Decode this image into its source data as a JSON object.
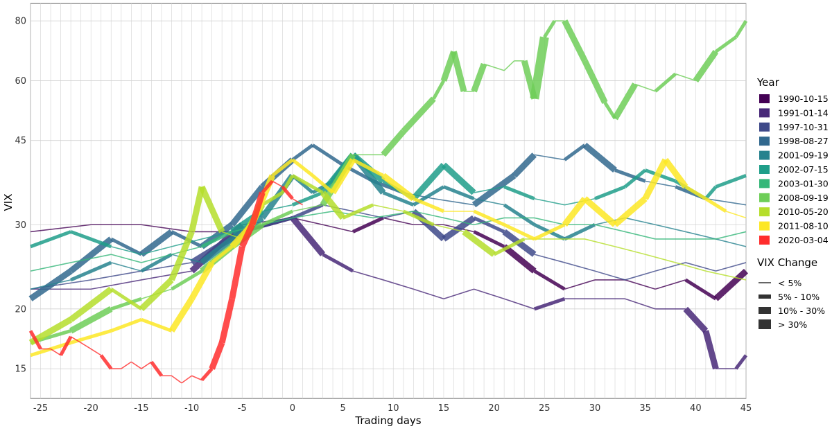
{
  "chart_data": {
    "type": "line",
    "xlabel": "Trading days",
    "ylabel": "VIX",
    "xlim": [
      -26,
      45
    ],
    "ylim": [
      13,
      87
    ],
    "y_scale": "log",
    "x_ticks": [
      -25,
      -20,
      -15,
      -10,
      -5,
      0,
      5,
      10,
      15,
      20,
      25,
      30,
      35,
      40,
      45
    ],
    "x_tick_labels": [
      "-25",
      "-20",
      "-15",
      "-10",
      "-5",
      "0",
      "5",
      "10",
      "15",
      "20",
      "25",
      "30",
      "35",
      "40",
      "45"
    ],
    "y_ticks": [
      15,
      20,
      30,
      45,
      60,
      80
    ],
    "y_tick_labels": [
      "15",
      "20",
      "30",
      "45",
      "60",
      "80"
    ],
    "grid": true,
    "legend": {
      "position": "right",
      "color_title": "Year",
      "size_title": "VIX Change",
      "size_labels": [
        "< 5%",
        "5% - 10%",
        "10% - 30%",
        "> 30%"
      ]
    },
    "series": [
      {
        "name": "1990-10-15",
        "color": "#440154",
        "values": [
          [
            -26,
            29
          ],
          [
            -20,
            30
          ],
          [
            -15,
            30
          ],
          [
            -10,
            29
          ],
          [
            -5,
            29
          ],
          [
            0,
            31
          ],
          [
            3,
            30
          ],
          [
            6,
            29
          ],
          [
            9,
            31
          ],
          [
            12,
            30
          ],
          [
            15,
            30
          ],
          [
            18,
            29
          ],
          [
            21,
            27
          ],
          [
            24,
            24
          ],
          [
            27,
            22
          ],
          [
            30,
            23
          ],
          [
            33,
            23
          ],
          [
            36,
            22
          ],
          [
            39,
            23
          ],
          [
            42,
            21
          ],
          [
            45,
            24
          ]
        ]
      },
      {
        "name": "1991-01-14",
        "color": "#482878",
        "values": [
          [
            -26,
            22
          ],
          [
            -20,
            22
          ],
          [
            -15,
            23
          ],
          [
            -10,
            24
          ],
          [
            -5,
            30
          ],
          [
            0,
            31
          ],
          [
            3,
            26
          ],
          [
            6,
            24
          ],
          [
            9,
            23
          ],
          [
            12,
            22
          ],
          [
            15,
            21
          ],
          [
            18,
            22
          ],
          [
            21,
            21
          ],
          [
            24,
            20
          ],
          [
            27,
            21
          ],
          [
            30,
            21
          ],
          [
            33,
            21
          ],
          [
            36,
            20
          ],
          [
            39,
            20
          ],
          [
            41,
            18
          ],
          [
            42,
            15
          ],
          [
            44,
            15
          ],
          [
            45,
            16
          ]
        ]
      },
      {
        "name": "1997-10-31",
        "color": "#3e4989",
        "values": [
          [
            -26,
            22
          ],
          [
            -20,
            23
          ],
          [
            -15,
            24
          ],
          [
            -10,
            25
          ],
          [
            -5,
            29
          ],
          [
            0,
            31
          ],
          [
            3,
            33
          ],
          [
            6,
            32
          ],
          [
            9,
            31
          ],
          [
            12,
            32
          ],
          [
            15,
            28
          ],
          [
            18,
            31
          ],
          [
            21,
            29
          ],
          [
            24,
            26
          ],
          [
            27,
            25
          ],
          [
            30,
            24
          ],
          [
            33,
            23
          ],
          [
            36,
            24
          ],
          [
            39,
            25
          ],
          [
            42,
            24
          ],
          [
            45,
            25
          ]
        ]
      },
      {
        "name": "1998-08-27",
        "color": "#31688e",
        "values": [
          [
            -26,
            21
          ],
          [
            -22,
            24
          ],
          [
            -18,
            28
          ],
          [
            -15,
            26
          ],
          [
            -12,
            29
          ],
          [
            -9,
            27
          ],
          [
            -6,
            30
          ],
          [
            -3,
            36
          ],
          [
            0,
            41
          ],
          [
            2,
            44
          ],
          [
            5,
            40
          ],
          [
            8,
            37
          ],
          [
            11,
            35
          ],
          [
            14,
            34
          ],
          [
            18,
            33
          ],
          [
            22,
            38
          ],
          [
            24,
            42
          ],
          [
            27,
            41
          ],
          [
            29,
            44
          ],
          [
            32,
            39
          ],
          [
            35,
            37
          ],
          [
            38,
            36
          ],
          [
            41,
            34
          ],
          [
            45,
            33
          ]
        ]
      },
      {
        "name": "2001-09-19",
        "color": "#26828e",
        "values": [
          [
            -26,
            22
          ],
          [
            -22,
            23
          ],
          [
            -18,
            25
          ],
          [
            -15,
            24
          ],
          [
            -12,
            26
          ],
          [
            -9,
            25
          ],
          [
            -6,
            28
          ],
          [
            -3,
            31
          ],
          [
            0,
            38
          ],
          [
            2,
            35
          ],
          [
            4,
            37
          ],
          [
            6,
            42
          ],
          [
            9,
            35
          ],
          [
            12,
            33
          ],
          [
            15,
            36
          ],
          [
            18,
            34
          ],
          [
            21,
            33
          ],
          [
            24,
            30
          ],
          [
            27,
            28
          ],
          [
            30,
            30
          ],
          [
            33,
            31
          ],
          [
            36,
            30
          ],
          [
            39,
            29
          ],
          [
            42,
            28
          ],
          [
            45,
            27
          ]
        ]
      },
      {
        "name": "2002-07-15",
        "color": "#1f9e89",
        "values": [
          [
            -26,
            27
          ],
          [
            -22,
            29
          ],
          [
            -18,
            27
          ],
          [
            -15,
            26
          ],
          [
            -12,
            27
          ],
          [
            -9,
            28
          ],
          [
            -6,
            29
          ],
          [
            -3,
            32
          ],
          [
            0,
            33
          ],
          [
            3,
            35
          ],
          [
            6,
            42
          ],
          [
            9,
            37
          ],
          [
            12,
            34
          ],
          [
            15,
            40
          ],
          [
            18,
            35
          ],
          [
            21,
            36
          ],
          [
            24,
            34
          ],
          [
            27,
            33
          ],
          [
            30,
            34
          ],
          [
            33,
            36
          ],
          [
            35,
            39
          ],
          [
            38,
            37
          ],
          [
            41,
            34
          ],
          [
            42,
            36
          ],
          [
            45,
            38
          ]
        ]
      },
      {
        "name": "2003-01-30",
        "color": "#35b779",
        "values": [
          [
            -26,
            24
          ],
          [
            -22,
            25
          ],
          [
            -18,
            26
          ],
          [
            -15,
            25
          ],
          [
            -12,
            26
          ],
          [
            -9,
            27
          ],
          [
            -6,
            29
          ],
          [
            -3,
            30
          ],
          [
            0,
            31
          ],
          [
            4,
            32
          ],
          [
            8,
            31
          ],
          [
            12,
            32
          ],
          [
            15,
            31
          ],
          [
            18,
            30
          ],
          [
            21,
            31
          ],
          [
            24,
            31
          ],
          [
            27,
            30
          ],
          [
            30,
            30
          ],
          [
            33,
            29
          ],
          [
            36,
            28
          ],
          [
            39,
            28
          ],
          [
            42,
            28
          ],
          [
            45,
            29
          ]
        ]
      },
      {
        "name": "2008-09-19",
        "color": "#6ece58",
        "values": [
          [
            -26,
            17
          ],
          [
            -22,
            18
          ],
          [
            -18,
            20
          ],
          [
            -15,
            21
          ],
          [
            -12,
            22
          ],
          [
            -9,
            24
          ],
          [
            -6,
            27
          ],
          [
            -3,
            30
          ],
          [
            0,
            32
          ],
          [
            3,
            33
          ],
          [
            6,
            42
          ],
          [
            9,
            42
          ],
          [
            11,
            47
          ],
          [
            14,
            55
          ],
          [
            15,
            60
          ],
          [
            16,
            69
          ],
          [
            17,
            57
          ],
          [
            18,
            57
          ],
          [
            19,
            65
          ],
          [
            21,
            63
          ],
          [
            22,
            66
          ],
          [
            23,
            66
          ],
          [
            24,
            55
          ],
          [
            25,
            74
          ],
          [
            26,
            80
          ],
          [
            27,
            80
          ],
          [
            29,
            66
          ],
          [
            31,
            54
          ],
          [
            32,
            50
          ],
          [
            34,
            59
          ],
          [
            36,
            57
          ],
          [
            38,
            62
          ],
          [
            40,
            60
          ],
          [
            42,
            69
          ],
          [
            44,
            74
          ],
          [
            45,
            80
          ]
        ]
      },
      {
        "name": "2010-05-20",
        "color": "#b5de2b",
        "values": [
          [
            -26,
            17
          ],
          [
            -22,
            19
          ],
          [
            -18,
            22
          ],
          [
            -15,
            20
          ],
          [
            -12,
            23
          ],
          [
            -10,
            29
          ],
          [
            -9,
            36
          ],
          [
            -7,
            29
          ],
          [
            -5,
            28
          ],
          [
            -3,
            33
          ],
          [
            -1,
            35
          ],
          [
            0,
            38
          ],
          [
            3,
            35
          ],
          [
            5,
            31
          ],
          [
            8,
            33
          ],
          [
            11,
            32
          ],
          [
            14,
            30
          ],
          [
            17,
            29
          ],
          [
            20,
            26
          ],
          [
            23,
            28
          ],
          [
            26,
            28
          ],
          [
            29,
            28
          ],
          [
            32,
            27
          ],
          [
            35,
            26
          ],
          [
            38,
            25
          ],
          [
            41,
            24
          ],
          [
            45,
            23
          ]
        ]
      },
      {
        "name": "2011-08-10",
        "color": "#fde725",
        "values": [
          [
            -26,
            16
          ],
          [
            -22,
            17
          ],
          [
            -18,
            18
          ],
          [
            -15,
            19
          ],
          [
            -12,
            18
          ],
          [
            -10,
            21
          ],
          [
            -8,
            25
          ],
          [
            -6,
            27
          ],
          [
            -4,
            30
          ],
          [
            -2,
            38
          ],
          [
            0,
            41
          ],
          [
            2,
            38
          ],
          [
            4,
            35
          ],
          [
            6,
            41
          ],
          [
            9,
            38
          ],
          [
            12,
            34
          ],
          [
            15,
            32
          ],
          [
            18,
            32
          ],
          [
            21,
            30
          ],
          [
            24,
            28
          ],
          [
            27,
            30
          ],
          [
            29,
            34
          ],
          [
            32,
            30
          ],
          [
            35,
            34
          ],
          [
            37,
            41
          ],
          [
            39,
            36
          ],
          [
            41,
            34
          ],
          [
            43,
            32
          ],
          [
            45,
            31
          ]
        ]
      },
      {
        "name": "2020-03-04",
        "color": "#ff2d2d",
        "values": [
          [
            -26,
            18
          ],
          [
            -25,
            16.5
          ],
          [
            -24,
            16.5
          ],
          [
            -23,
            16
          ],
          [
            -22,
            17.5
          ],
          [
            -21,
            17
          ],
          [
            -20,
            16.5
          ],
          [
            -19,
            16
          ],
          [
            -18,
            15
          ],
          [
            -17,
            15
          ],
          [
            -16,
            15.5
          ],
          [
            -15,
            15
          ],
          [
            -14,
            15.5
          ],
          [
            -13,
            14.5
          ],
          [
            -12,
            14.5
          ],
          [
            -11,
            14
          ],
          [
            -10,
            14.5
          ],
          [
            -9,
            14.2
          ],
          [
            -8,
            15
          ],
          [
            -7,
            17
          ],
          [
            -6,
            21
          ],
          [
            -5,
            27
          ],
          [
            -4,
            30
          ],
          [
            -3,
            35
          ],
          [
            -2,
            37
          ],
          [
            -1,
            36
          ],
          [
            0,
            34
          ],
          [
            1,
            33
          ]
        ]
      }
    ]
  }
}
